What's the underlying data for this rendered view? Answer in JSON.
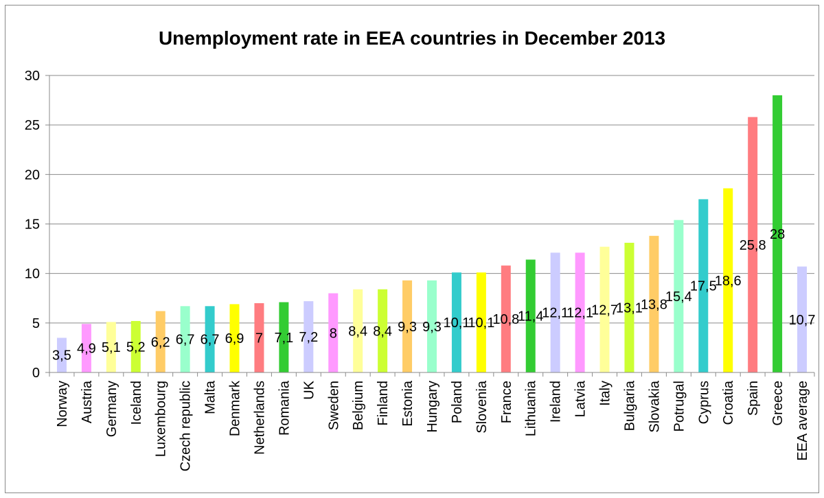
{
  "chart_data": {
    "type": "bar",
    "title": "Unemployment rate in EEA countries in December 2013",
    "xlabel": "",
    "ylabel": "",
    "ylim": [
      0,
      30
    ],
    "yticks": [
      0,
      5,
      10,
      15,
      20,
      25,
      30
    ],
    "grid": "horizontal",
    "legend": "none",
    "categories": [
      "Norway",
      "Austria",
      "Germany",
      "Iceland",
      "Luxembourg",
      "Czech republic",
      "Malta",
      "Denmark",
      "Netherlands",
      "Romania",
      "UK",
      "Sweden",
      "Belgium",
      "Finland",
      "Estonia",
      "Hungary",
      "Poland",
      "Slovenia",
      "France",
      "Lithuania",
      "Ireland",
      "Latvia",
      "Italy",
      "Bulgaria",
      "Slovakia",
      "Potrugal",
      "Cyprus",
      "Croatia",
      "Spain",
      "Greece",
      "EEA average"
    ],
    "values": [
      3.5,
      4.9,
      5.1,
      5.2,
      6.2,
      6.7,
      6.7,
      6.9,
      7,
      7.1,
      7.2,
      8,
      8.4,
      8.4,
      9.3,
      9.3,
      10.1,
      10.1,
      10.8,
      11.4,
      12.1,
      12.1,
      12.7,
      13.1,
      13.8,
      15.4,
      17.5,
      18.6,
      25.8,
      28,
      10.7
    ],
    "data_labels": [
      "3,5",
      "4,9",
      "5,1",
      "5,2",
      "6,2",
      "6,7",
      "6,7",
      "6,9",
      "7",
      "7,1",
      "7,2",
      "8",
      "8,4",
      "8,4",
      "9,3",
      "9,3",
      "10,1",
      "10,1",
      "10,8",
      "11,4",
      "12,1",
      "12,1",
      "12,7",
      "13,1",
      "13,8",
      "15,4",
      "17,5",
      "18,6",
      "25,8",
      "28",
      "10,7"
    ],
    "colors": [
      "#ccccff",
      "#ff99ff",
      "#ffff99",
      "#ccff33",
      "#ffcc66",
      "#99ffcc",
      "#33cccc",
      "#ffff00",
      "#ff7c80",
      "#33cc33",
      "#ccccff",
      "#ff99ff",
      "#ffff99",
      "#ccff33",
      "#ffcc66",
      "#99ffcc",
      "#33cccc",
      "#ffff00",
      "#ff7c80",
      "#33cc33",
      "#ccccff",
      "#ff99ff",
      "#ffff99",
      "#ccff33",
      "#ffcc66",
      "#99ffcc",
      "#33cccc",
      "#ffff00",
      "#ff7c80",
      "#33cc33",
      "#ccccff"
    ]
  }
}
